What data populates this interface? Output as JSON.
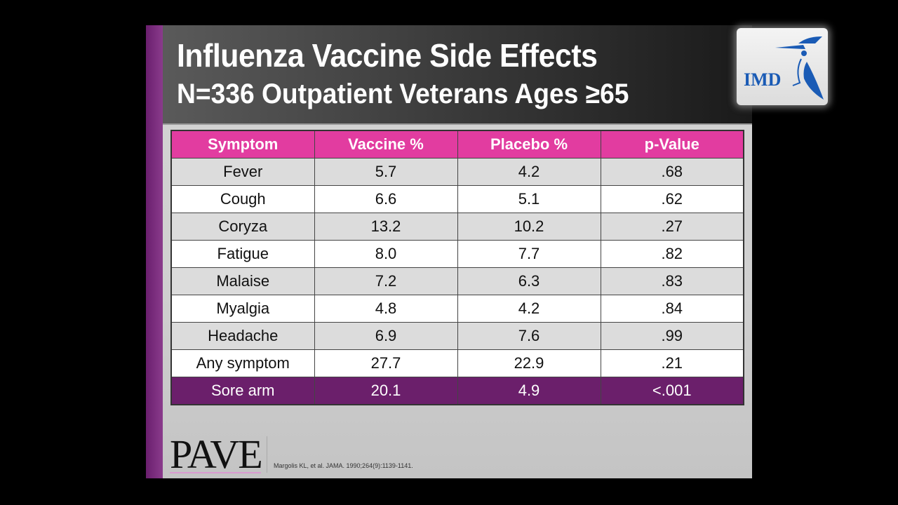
{
  "title": {
    "line1": "Influenza Vaccine Side Effects",
    "line2": "N=336 Outpatient Veterans Ages ≥65"
  },
  "table": {
    "headers": [
      "Symptom",
      "Vaccine %",
      "Placebo %",
      "p-Value"
    ],
    "rows": [
      [
        "Fever",
        "5.7",
        "4.2",
        ".68"
      ],
      [
        "Cough",
        "6.6",
        "5.1",
        ".62"
      ],
      [
        "Coryza",
        "13.2",
        "10.2",
        ".27"
      ],
      [
        "Fatigue",
        "8.0",
        "7.7",
        ".82"
      ],
      [
        "Malaise",
        "7.2",
        "6.3",
        ".83"
      ],
      [
        "Myalgia",
        "4.8",
        "4.2",
        ".84"
      ],
      [
        "Headache",
        "6.9",
        "7.6",
        ".99"
      ],
      [
        "Any symptom",
        "27.7",
        "22.9",
        ".21"
      ],
      [
        "Sore arm",
        "20.1",
        "4.9",
        "<.001"
      ]
    ],
    "highlight_row": "Sore arm"
  },
  "footer": {
    "logo_text": "PAVE",
    "citation": "Margolis KL, et al. JAMA. 1990;264(9):1139-1141."
  },
  "corner_logo": {
    "text": "IMD",
    "color": "#1a5bb5"
  },
  "colors": {
    "header": "#e23ca0",
    "highlight": "#6b1f6b",
    "accent_bar": "#7a2e7c"
  }
}
